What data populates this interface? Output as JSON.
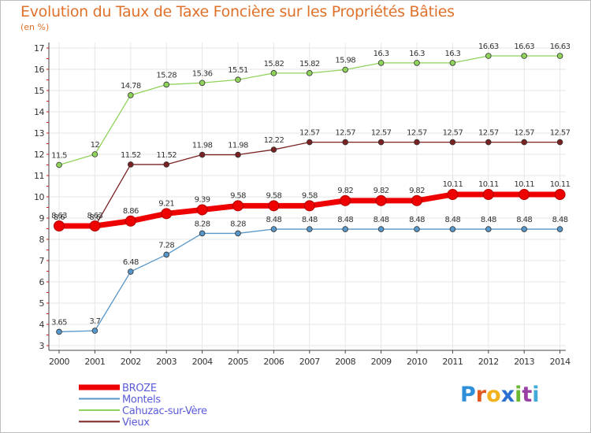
{
  "header": {
    "title": "Evolution du Taux de Taxe Foncière sur les Propriétés Bâties",
    "unit": "(en %)"
  },
  "logo": {
    "letters": [
      "P",
      "r",
      "o",
      "x",
      "i",
      "t",
      "i"
    ],
    "colors": [
      "#2e8fd8",
      "#e05a1e",
      "#f2b21f",
      "#2b6fd1",
      "#6bb832",
      "#9a3fa6",
      "#43a9d8"
    ]
  },
  "chart_data": {
    "type": "line",
    "title": "Evolution du Taux de Taxe Foncière sur les Propriétés Bâties",
    "ylabel": "(en %)",
    "xlabel": "",
    "x": [
      "2000",
      "2001",
      "2002",
      "2003",
      "2004",
      "2005",
      "2006",
      "2007",
      "2008",
      "2009",
      "2010",
      "2011",
      "2012",
      "2013",
      "2014"
    ],
    "yticks": [
      "3",
      "4",
      "5",
      "6",
      "7",
      "8",
      "9",
      "10",
      "11",
      "12",
      "13",
      "14",
      "15",
      "16",
      "17"
    ],
    "ylim": [
      3,
      17
    ],
    "grid": true,
    "legend_position": "bottom-left",
    "series": [
      {
        "name": "BROZE",
        "color": "#ee0000",
        "values": [
          8.63,
          8.63,
          8.86,
          9.21,
          9.39,
          9.58,
          9.58,
          9.58,
          9.82,
          9.82,
          9.82,
          10.11,
          10.11,
          10.11,
          10.11
        ],
        "labels": [
          "8.63",
          "8.63",
          "8.86",
          "9.21",
          "9.39",
          "9.58",
          "9.58",
          "9.58",
          "9.82",
          "9.82",
          "9.82",
          "10.11",
          "10.11",
          "10.11",
          "10.11"
        ]
      },
      {
        "name": "Montels",
        "color": "#5796c8",
        "values": [
          3.65,
          3.7,
          6.48,
          7.28,
          8.28,
          8.28,
          8.48,
          8.48,
          8.48,
          8.48,
          8.48,
          8.48,
          8.48,
          8.48,
          8.48
        ],
        "labels": [
          "3.65",
          "3.7",
          "6.48",
          "7.28",
          "8.28",
          "8.28",
          "8.48",
          "8.48",
          "8.48",
          "8.48",
          "8.48",
          "8.48",
          "8.48",
          "8.48",
          "8.48"
        ]
      },
      {
        "name": "Cahuzac-sur-Vère",
        "color": "#8fd35a",
        "values": [
          11.5,
          12,
          14.78,
          15.28,
          15.36,
          15.51,
          15.82,
          15.82,
          15.98,
          16.3,
          16.3,
          16.3,
          16.63,
          16.63,
          16.63
        ],
        "labels": [
          "11.5",
          "12",
          "14.78",
          "15.28",
          "15.36",
          "15.51",
          "15.82",
          "15.82",
          "15.98",
          "16.3",
          "16.3",
          "16.3",
          "16.63",
          "16.63",
          "16.63"
        ]
      },
      {
        "name": "Vieux",
        "color": "#7a2222",
        "values": [
          8.6,
          8.6,
          11.52,
          11.52,
          11.98,
          11.98,
          12.22,
          12.57,
          12.57,
          12.57,
          12.57,
          12.57,
          12.57,
          12.57,
          12.57
        ],
        "labels": [
          "8.6",
          "8.6",
          "11.52",
          "11.52",
          "11.98",
          "11.98",
          "12.22",
          "12.57",
          "12.57",
          "12.57",
          "12.57",
          "12.57",
          "12.57",
          "12.57",
          "12.57"
        ]
      }
    ]
  }
}
